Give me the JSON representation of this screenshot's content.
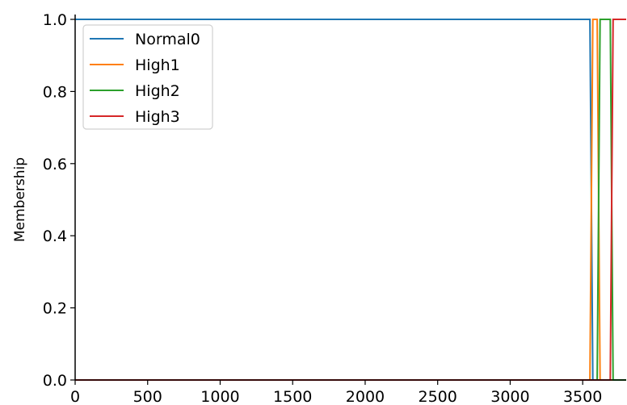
{
  "chart_data": {
    "type": "line",
    "xlabel": "",
    "ylabel": "Membership",
    "xlim": [
      0,
      3800
    ],
    "ylim": [
      0,
      1.0
    ],
    "xticks": [
      0,
      500,
      1000,
      1500,
      2000,
      2500,
      3000,
      3500
    ],
    "yticks": [
      0.0,
      0.2,
      0.4,
      0.6,
      0.8,
      1.0
    ],
    "xtick_labels": [
      "0",
      "500",
      "1000",
      "1500",
      "2000",
      "2500",
      "3000",
      "3500"
    ],
    "ytick_labels": [
      "0.0",
      "0.2",
      "0.4",
      "0.6",
      "0.8",
      "1.0"
    ],
    "legend_position": "top-left",
    "grid": false,
    "series": [
      {
        "name": "Normal0",
        "color": "#1f77b4",
        "x": [
          0,
          3550,
          3570,
          3800
        ],
        "y": [
          1,
          1,
          0,
          0
        ]
      },
      {
        "name": "High1",
        "color": "#ff7f0e",
        "x": [
          0,
          3550,
          3570,
          3600,
          3620,
          3800
        ],
        "y": [
          0,
          0,
          1,
          1,
          0,
          0
        ]
      },
      {
        "name": "High2",
        "color": "#2ca02c",
        "x": [
          0,
          3600,
          3620,
          3690,
          3710,
          3800
        ],
        "y": [
          0,
          0,
          1,
          1,
          0,
          0
        ]
      },
      {
        "name": "High3",
        "color": "#d62728",
        "x": [
          0,
          3690,
          3710,
          3800
        ],
        "y": [
          0,
          0,
          1,
          1
        ]
      }
    ]
  }
}
